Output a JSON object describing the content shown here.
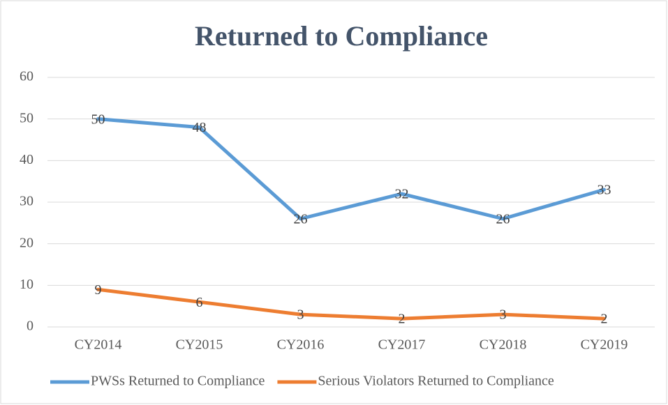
{
  "chart_data": {
    "type": "line",
    "title": "Returned to Compliance",
    "categories": [
      "CY2014",
      "CY2015",
      "CY2016",
      "CY2017",
      "CY2018",
      "CY2019"
    ],
    "series": [
      {
        "name": "PWSs Returned to Compliance",
        "color": "#5b9bd5",
        "values": [
          50,
          48,
          26,
          32,
          26,
          33
        ]
      },
      {
        "name": "Serious Violators Returned to Compliance",
        "color": "#ed7d31",
        "values": [
          9,
          6,
          3,
          2,
          3,
          2
        ]
      }
    ],
    "ylim": [
      0,
      60
    ],
    "yticks": [
      0,
      10,
      20,
      30,
      40,
      50,
      60
    ],
    "grid": true,
    "legend": "bottom"
  }
}
